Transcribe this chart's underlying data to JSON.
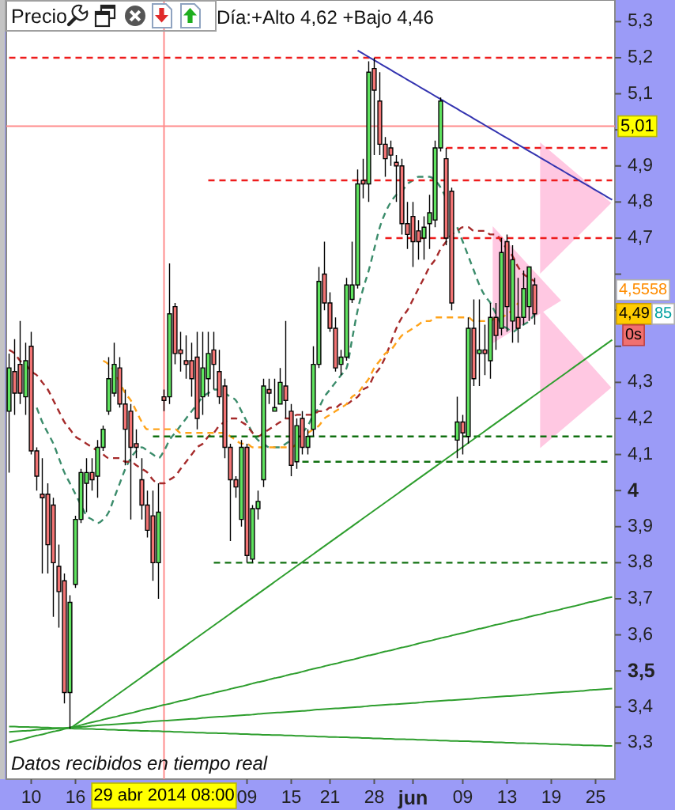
{
  "chart_data": {
    "type": "candlestick",
    "title": "Precio",
    "subtitle": "Día:+Alto 4,62 +Bajo 4,46",
    "categories": [
      null,
      null,
      null,
      null,
      "10",
      null,
      null,
      null,
      null,
      null,
      null,
      null,
      "16",
      null,
      null,
      null,
      null,
      null,
      null,
      null,
      null,
      null,
      null,
      null,
      null,
      null,
      null,
      null,
      "29 abr 2014 08:00",
      null,
      null,
      null,
      null,
      null,
      null,
      null,
      null,
      null,
      null,
      null,
      null,
      null,
      null,
      "09",
      null,
      null,
      null,
      null,
      null,
      null,
      null,
      "15",
      null,
      null,
      null,
      null,
      null,
      null,
      "21",
      null,
      null,
      null,
      null,
      null,
      null,
      null,
      "28",
      null,
      null,
      null,
      null,
      null,
      null,
      "jun",
      null,
      null,
      null,
      null,
      null,
      null,
      null,
      null,
      "09",
      null,
      null,
      null,
      null,
      null,
      null,
      null,
      "13",
      null,
      null,
      null,
      null,
      null,
      null,
      null,
      "19",
      null,
      null,
      null,
      null,
      null,
      null,
      null,
      "25",
      null,
      null,
      null
    ],
    "ohlc": [
      [
        4.22,
        4.38,
        4.05,
        4.34
      ],
      [
        4.33,
        4.42,
        4.21,
        4.27
      ],
      [
        4.35,
        4.47,
        4.24,
        4.27
      ],
      [
        4.26,
        4.41,
        4.21,
        4.36
      ],
      [
        4.4,
        4.44,
        4.1,
        4.11
      ],
      [
        4.11,
        4.12,
        4.0,
        4.04
      ],
      [
        3.99,
        4.09,
        3.77,
        3.98
      ],
      [
        3.99,
        4.02,
        3.77,
        3.85
      ],
      [
        3.96,
        3.98,
        3.65,
        3.8
      ],
      [
        3.79,
        3.85,
        3.62,
        3.72
      ],
      [
        3.75,
        3.77,
        3.41,
        3.44
      ],
      [
        3.44,
        3.71,
        3.34,
        3.69
      ],
      [
        3.74,
        3.93,
        3.73,
        3.92
      ],
      [
        3.92,
        4.06,
        3.91,
        4.05
      ],
      [
        4.02,
        4.09,
        3.94,
        4.05
      ],
      [
        4.05,
        4.09,
        4.0,
        4.03
      ],
      [
        4.04,
        4.14,
        3.98,
        4.12
      ],
      [
        4.12,
        4.18,
        4.11,
        4.17
      ],
      [
        4.22,
        4.37,
        4.21,
        4.31
      ],
      [
        4.27,
        4.41,
        4.26,
        4.35
      ],
      [
        4.34,
        4.37,
        4.23,
        4.24
      ],
      [
        4.24,
        4.28,
        4.07,
        4.17
      ],
      [
        4.22,
        4.24,
        3.92,
        4.12
      ],
      [
        4.13,
        4.17,
        4.09,
        4.12
      ],
      [
        4.03,
        4.09,
        3.92,
        3.96
      ],
      [
        3.96,
        4.0,
        3.87,
        3.89
      ],
      [
        3.93,
        4.0,
        3.75,
        3.8
      ],
      [
        3.8,
        4.02,
        3.7,
        3.94
      ],
      [
        4.26,
        4.28,
        4.22,
        4.25
      ],
      [
        4.26,
        4.63,
        4.24,
        4.49
      ],
      [
        4.51,
        4.52,
        4.35,
        4.38
      ],
      [
        4.39,
        4.44,
        4.33,
        4.38
      ],
      [
        4.36,
        4.43,
        4.31,
        4.35
      ],
      [
        4.36,
        4.41,
        4.26,
        4.31
      ],
      [
        4.37,
        4.44,
        4.17,
        4.2
      ],
      [
        4.26,
        4.44,
        4.21,
        4.34
      ],
      [
        4.31,
        4.44,
        4.26,
        4.38
      ],
      [
        4.39,
        4.44,
        4.28,
        4.35
      ],
      [
        4.33,
        4.39,
        4.24,
        4.26
      ],
      [
        4.29,
        4.31,
        4.09,
        4.12
      ],
      [
        4.12,
        4.13,
        3.86,
        4.03
      ],
      [
        4.03,
        4.04,
        3.98,
        4.01
      ],
      [
        3.92,
        4.14,
        3.9,
        4.12
      ],
      [
        4.12,
        4.13,
        3.8,
        3.82
      ],
      [
        3.81,
        3.96,
        3.8,
        3.95
      ],
      [
        3.95,
        4.0,
        3.92,
        3.97
      ],
      [
        4.03,
        4.31,
        4.01,
        4.29
      ],
      [
        4.28,
        4.31,
        4.24,
        4.27
      ],
      [
        4.22,
        4.31,
        4.22,
        4.23
      ],
      [
        4.24,
        4.34,
        4.24,
        4.3
      ],
      [
        4.29,
        4.47,
        4.2,
        4.25
      ],
      [
        4.22,
        4.24,
        4.04,
        4.07
      ],
      [
        4.08,
        4.2,
        4.06,
        4.18
      ],
      [
        4.2,
        4.22,
        4.1,
        4.12
      ],
      [
        4.12,
        4.17,
        4.1,
        4.15
      ],
      [
        4.17,
        4.4,
        4.15,
        4.35
      ],
      [
        4.35,
        4.62,
        4.34,
        4.58
      ],
      [
        4.6,
        4.69,
        4.5,
        4.52
      ],
      [
        4.52,
        4.55,
        4.44,
        4.45
      ],
      [
        4.45,
        4.48,
        4.33,
        4.34
      ],
      [
        4.35,
        4.39,
        4.32,
        4.37
      ],
      [
        4.37,
        4.59,
        4.36,
        4.57
      ],
      [
        4.53,
        4.69,
        4.52,
        4.57
      ],
      [
        4.57,
        4.89,
        4.56,
        4.85
      ],
      [
        4.86,
        4.92,
        4.81,
        4.85
      ],
      [
        4.85,
        5.19,
        4.8,
        5.16
      ],
      [
        5.17,
        5.2,
        4.93,
        5.11
      ],
      [
        5.08,
        5.16,
        4.93,
        4.96
      ],
      [
        4.96,
        4.98,
        4.87,
        4.92
      ],
      [
        4.95,
        4.97,
        4.9,
        4.93
      ],
      [
        4.91,
        4.93,
        4.8,
        4.9
      ],
      [
        4.9,
        4.92,
        4.71,
        4.74
      ],
      [
        4.74,
        4.8,
        4.67,
        4.71
      ],
      [
        4.76,
        4.8,
        4.62,
        4.69
      ],
      [
        4.72,
        4.75,
        4.64,
        4.69
      ],
      [
        4.7,
        4.76,
        4.64,
        4.73
      ],
      [
        4.74,
        4.82,
        4.67,
        4.77
      ],
      [
        4.75,
        4.97,
        4.73,
        4.95
      ],
      [
        4.95,
        5.09,
        4.94,
        5.08
      ],
      [
        4.92,
        4.95,
        4.68,
        4.7
      ],
      [
        4.83,
        4.84,
        4.5,
        4.52
      ],
      [
        4.14,
        4.26,
        4.09,
        4.19
      ],
      [
        4.19,
        4.21,
        4.1,
        4.16
      ],
      [
        4.15,
        4.48,
        4.13,
        4.45
      ],
      [
        4.45,
        4.53,
        4.29,
        4.31
      ],
      [
        4.38,
        4.53,
        4.29,
        4.39
      ],
      [
        4.39,
        4.46,
        4.32,
        4.38
      ],
      [
        4.36,
        4.52,
        4.31,
        4.48
      ],
      [
        4.48,
        4.52,
        4.39,
        4.43
      ],
      [
        4.45,
        4.7,
        4.43,
        4.66
      ],
      [
        4.69,
        4.71,
        4.44,
        4.51
      ],
      [
        4.47,
        4.68,
        4.41,
        4.64
      ],
      [
        4.48,
        4.59,
        4.41,
        4.45
      ],
      [
        4.48,
        4.61,
        4.46,
        4.56
      ],
      [
        4.51,
        4.62,
        4.47,
        4.62
      ],
      [
        4.57,
        4.59,
        4.46,
        4.49
      ],
      null,
      null,
      null,
      null,
      null,
      null,
      null,
      null,
      null,
      null,
      null,
      null,
      null,
      null
    ],
    "ylim": [
      3.2,
      5.36
    ],
    "yticks": [
      {
        "value": 5.3,
        "label": "5,3"
      },
      {
        "value": 5.2,
        "label": "5,2"
      },
      {
        "value": 5.1,
        "label": "5,1"
      },
      {
        "value": 5,
        "label": null
      },
      {
        "value": 4.9,
        "label": "4,9"
      },
      {
        "value": 4.8,
        "label": "4,8"
      },
      {
        "value": 4.7,
        "label": "4,7"
      },
      {
        "value": 4.6,
        "label": null
      },
      {
        "value": 4.5,
        "label": null
      },
      {
        "value": 4.4,
        "label": null
      },
      {
        "value": 4.3,
        "label": "4,3"
      },
      {
        "value": 4.2,
        "label": "4,2"
      },
      {
        "value": 4.1,
        "label": "4,1"
      },
      4,
      {
        "value": 3.9,
        "label": "3,9"
      },
      {
        "value": 3.8,
        "label": "3,8"
      },
      {
        "value": 3.7,
        "label": "3,7"
      },
      {
        "value": 3.6,
        "label": "3,6"
      },
      {
        "value": 3.5,
        "label": "3,5"
      },
      {
        "value": 3.4,
        "label": "3,4"
      },
      {
        "value": 3.3,
        "label": "3,3"
      }
    ],
    "series": [
      {
        "type": "line",
        "color": "#3b8c6b",
        "line_style": "dashed",
        "values": [
          null,
          null,
          null,
          null,
          null,
          4.23,
          4.19,
          4.16,
          4.13,
          4.09,
          4.05,
          4.02,
          3.99,
          3.96,
          3.93,
          3.92,
          3.91,
          3.92,
          3.94,
          3.98,
          4.02,
          4.06,
          4.09,
          4.11,
          4.12,
          4.11,
          4.1,
          4.09,
          4.11,
          4.14,
          4.16,
          4.18,
          4.2,
          4.22,
          4.24,
          4.26,
          4.27,
          4.28,
          4.28,
          4.27,
          4.26,
          4.25,
          4.22,
          4.19,
          4.16,
          4.14,
          4.13,
          4.12,
          4.12,
          4.12,
          4.13,
          4.14,
          null,
          4.16,
          4.18,
          4.21,
          4.23,
          4.26,
          4.28,
          4.3,
          4.32,
          4.34,
          4.42,
          4.5,
          4.56,
          4.61,
          4.67,
          4.73,
          4.77,
          4.8,
          4.82,
          4.83,
          4.85,
          4.86,
          4.87,
          4.87,
          4.87,
          4.86,
          4.84,
          4.81,
          null,
          4.73,
          4.69,
          4.65,
          4.61,
          4.57,
          4.54,
          4.52,
          4.49,
          4.46,
          4.45,
          4.44,
          4.45,
          4.46,
          4.47,
          4.49,
          null,
          null,
          null,
          null,
          null,
          null,
          null,
          null,
          null,
          null,
          null,
          null,
          null,
          null
        ]
      },
      {
        "type": "line",
        "color": "#a52a2a",
        "line_style": "dashed",
        "values": [
          4.39,
          4.38,
          4.36,
          4.35,
          4.33,
          4.32,
          4.3,
          4.28,
          4.25,
          4.22,
          4.19,
          4.17,
          4.15,
          4.14,
          4.13,
          4.12,
          4.11,
          4.1,
          4.09,
          4.09,
          4.09,
          4.08,
          4.08,
          4.07,
          4.06,
          4.05,
          4.03,
          4.02,
          4.02,
          4.03,
          4.04,
          4.06,
          4.08,
          4.1,
          4.12,
          4.13,
          4.15,
          4.16,
          4.18,
          4.19,
          4.2,
          4.2,
          4.19,
          4.18,
          4.16,
          4.15,
          4.16,
          4.17,
          4.18,
          4.19,
          4.2,
          4.2,
          4.21,
          4.21,
          4.21,
          4.21,
          4.22,
          4.22,
          4.23,
          4.23,
          4.24,
          4.24,
          4.25,
          4.26,
          4.28,
          4.29,
          4.32,
          4.34,
          4.37,
          4.41,
          4.45,
          4.48,
          4.5,
          4.53,
          4.56,
          4.59,
          4.62,
          4.64,
          4.67,
          4.69,
          4.71,
          4.72,
          4.73,
          4.73,
          4.72,
          4.72,
          4.72,
          4.71,
          4.71,
          4.69,
          4.67,
          4.65,
          4.62,
          4.6,
          4.59,
          4.58,
          null,
          null,
          null,
          null,
          null,
          null,
          null,
          null,
          null,
          null,
          null,
          null,
          null,
          null
        ]
      },
      {
        "type": "line",
        "color": "#ffa31a",
        "line_style": "dashed",
        "values": [
          null,
          null,
          null,
          null,
          null,
          null,
          null,
          null,
          null,
          null,
          null,
          null,
          null,
          null,
          null,
          null,
          null,
          4.36,
          4.35,
          4.33,
          4.3,
          4.27,
          4.25,
          4.22,
          4.19,
          4.17,
          4.17,
          4.17,
          4.17,
          4.17,
          4.17,
          4.16,
          4.16,
          4.16,
          4.16,
          4.16,
          4.16,
          4.16,
          4.16,
          4.16,
          4.15,
          4.14,
          4.13,
          4.13,
          4.12,
          4.12,
          4.12,
          4.12,
          4.12,
          4.12,
          4.12,
          4.12,
          4.13,
          null,
          4.16,
          4.17,
          4.18,
          4.2,
          4.21,
          4.22,
          4.23,
          4.24,
          4.26,
          4.27,
          4.29,
          4.31,
          4.34,
          4.36,
          4.38,
          4.39,
          4.41,
          4.43,
          4.44,
          4.45,
          4.46,
          4.47,
          4.47,
          4.48,
          4.48,
          4.48,
          4.48,
          4.48,
          4.48,
          4.48,
          4.47,
          4.47,
          4.47,
          4.47,
          4.48,
          4.48,
          4.49,
          4.5,
          4.52,
          null,
          null,
          null,
          null,
          null,
          null,
          null,
          null,
          null,
          null,
          null,
          null,
          null,
          null,
          null,
          null,
          null
        ]
      },
      {
        "type": "line",
        "color": "#ee1c1c",
        "line_style": "dashed",
        "values": [
          5.2,
          5.2,
          5.2,
          5.2,
          5.2,
          5.2,
          5.2,
          5.2,
          5.2,
          5.2,
          5.2,
          5.2,
          5.2,
          5.2,
          5.2,
          5.2,
          5.2,
          5.2,
          5.2,
          5.2,
          5.2,
          5.2,
          5.2,
          5.2,
          5.2,
          5.2,
          5.2,
          5.2,
          5.2,
          5.2,
          5.2,
          5.2,
          5.2,
          5.2,
          5.2,
          5.2,
          5.2,
          5.2,
          5.2,
          5.2,
          5.2,
          5.2,
          5.2,
          5.2,
          5.2,
          5.2,
          5.2,
          5.2,
          5.2,
          5.2,
          5.2,
          5.2,
          5.2,
          5.2,
          5.2,
          5.2,
          5.2,
          5.2,
          5.2,
          5.2,
          5.2,
          5.2,
          5.2,
          5.2,
          5.2,
          5.2,
          5.2,
          5.2,
          5.2,
          5.2,
          5.2,
          5.2,
          5.2,
          5.2,
          5.2,
          5.2,
          5.2,
          5.2,
          5.2,
          5.2,
          5.2,
          5.2,
          5.2,
          5.2,
          5.2,
          5.2,
          5.2,
          5.2,
          5.2,
          5.2,
          5.2,
          5.2,
          5.2,
          5.2,
          5.2,
          5.2,
          5.2,
          5.2,
          5.2,
          5.2,
          5.2,
          5.2,
          5.2,
          5.2,
          5.2,
          5.2,
          5.2,
          5.2,
          5.2,
          5.2
        ]
      },
      {
        "type": "line",
        "color": "#ee1c1c",
        "line_style": "dashed",
        "values": [
          null,
          null,
          null,
          null,
          null,
          null,
          null,
          null,
          null,
          null,
          null,
          null,
          null,
          null,
          null,
          null,
          null,
          null,
          null,
          null,
          null,
          null,
          null,
          null,
          null,
          null,
          null,
          null,
          null,
          null,
          null,
          null,
          null,
          null,
          null,
          null,
          null,
          null,
          null,
          null,
          null,
          null,
          null,
          null,
          null,
          null,
          null,
          null,
          null,
          null,
          null,
          null,
          null,
          null,
          null,
          null,
          null,
          null,
          null,
          null,
          null,
          null,
          null,
          null,
          null,
          null,
          null,
          null,
          null,
          null,
          null,
          null,
          null,
          null,
          null,
          null,
          null,
          null,
          null,
          4.95,
          4.95,
          4.95,
          4.95,
          4.95,
          4.95,
          4.95,
          4.95,
          4.95,
          4.95,
          4.95,
          4.95,
          4.95,
          4.95,
          4.95,
          4.95,
          4.95,
          4.95,
          4.95,
          4.95,
          4.95,
          4.95,
          4.95,
          4.95,
          4.95,
          4.95,
          4.95,
          4.95,
          4.95,
          4.95,
          4.95
        ]
      },
      {
        "type": "line",
        "color": "#ee1c1c",
        "line_style": "dashed",
        "values": [
          null,
          null,
          null,
          null,
          null,
          null,
          null,
          null,
          null,
          null,
          null,
          null,
          null,
          null,
          null,
          null,
          null,
          null,
          null,
          null,
          null,
          null,
          null,
          null,
          null,
          null,
          null,
          null,
          null,
          null,
          null,
          null,
          null,
          null,
          null,
          null,
          4.86,
          4.86,
          4.86,
          4.86,
          4.86,
          4.86,
          4.86,
          4.86,
          4.86,
          4.86,
          4.86,
          4.86,
          4.86,
          4.86,
          4.86,
          4.86,
          4.86,
          4.86,
          4.86,
          4.86,
          4.86,
          4.86,
          4.86,
          4.86,
          4.86,
          4.86,
          4.86,
          4.86,
          4.86,
          4.86,
          4.86,
          4.86,
          4.86,
          4.86,
          4.86,
          4.86,
          4.86,
          4.86,
          4.86,
          4.86,
          4.86,
          4.86,
          4.86,
          4.86,
          4.86,
          4.86,
          4.86,
          4.86,
          4.86,
          4.86,
          4.86,
          4.86,
          4.86,
          4.86,
          4.86,
          4.86,
          4.86,
          4.86,
          4.86,
          4.86,
          4.86,
          4.86,
          4.86,
          4.86,
          4.86,
          4.86,
          4.86,
          4.86,
          4.86,
          4.86,
          4.86,
          4.86,
          4.86,
          4.86
        ]
      },
      {
        "type": "line",
        "color": "#ee1c1c",
        "line_style": "dashed",
        "values": [
          null,
          null,
          null,
          null,
          null,
          null,
          null,
          null,
          null,
          null,
          null,
          null,
          null,
          null,
          null,
          null,
          null,
          null,
          null,
          null,
          null,
          null,
          null,
          null,
          null,
          null,
          null,
          null,
          null,
          null,
          null,
          null,
          null,
          null,
          null,
          null,
          null,
          null,
          null,
          null,
          null,
          null,
          null,
          null,
          null,
          null,
          null,
          null,
          null,
          null,
          null,
          null,
          null,
          null,
          null,
          null,
          null,
          null,
          null,
          null,
          null,
          null,
          null,
          null,
          null,
          null,
          null,
          null,
          4.7,
          4.7,
          4.7,
          4.7,
          4.7,
          4.7,
          4.7,
          4.7,
          4.7,
          4.7,
          4.7,
          4.7,
          4.7,
          4.7,
          4.7,
          4.7,
          4.7,
          4.7,
          4.7,
          4.7,
          4.7,
          4.7,
          4.7,
          4.7,
          4.7,
          4.7,
          4.7,
          4.7,
          4.7,
          4.7,
          4.7,
          4.7,
          4.7,
          4.7,
          4.7,
          4.7,
          4.7,
          4.7,
          4.7,
          4.7,
          4.7,
          4.7
        ]
      },
      {
        "type": "line",
        "color": "#107010",
        "line_style": "dashed",
        "values": [
          null,
          null,
          null,
          null,
          null,
          null,
          null,
          null,
          null,
          null,
          null,
          null,
          null,
          null,
          null,
          null,
          null,
          null,
          null,
          null,
          null,
          null,
          null,
          null,
          null,
          null,
          4.15,
          4.15,
          4.15,
          4.15,
          4.15,
          4.15,
          4.15,
          4.15,
          4.15,
          4.15,
          4.15,
          4.15,
          4.15,
          4.15,
          4.15,
          4.15,
          4.15,
          4.15,
          4.15,
          4.15,
          4.15,
          4.15,
          4.15,
          4.15,
          4.15,
          4.15,
          4.15,
          4.15,
          4.15,
          4.15,
          4.15,
          4.15,
          4.15,
          4.15,
          4.15,
          4.15,
          4.15,
          4.15,
          4.15,
          4.15,
          4.15,
          4.15,
          4.15,
          4.15,
          4.15,
          4.15,
          4.15,
          4.15,
          4.15,
          4.15,
          4.15,
          4.15,
          4.15,
          4.15,
          4.15,
          4.15,
          4.15,
          4.15,
          4.15,
          4.15,
          4.15,
          4.15,
          4.15,
          4.15,
          4.15,
          4.15,
          4.15,
          4.15,
          4.15,
          4.15,
          4.15,
          4.15,
          4.15,
          4.15,
          4.15,
          4.15,
          4.15,
          4.15,
          4.15,
          4.15,
          4.15,
          4.15,
          4.15,
          4.15
        ]
      },
      {
        "type": "line",
        "color": "#107010",
        "line_style": "dashed",
        "values": [
          null,
          null,
          null,
          null,
          null,
          null,
          null,
          null,
          null,
          null,
          null,
          null,
          null,
          null,
          null,
          null,
          null,
          null,
          null,
          null,
          null,
          null,
          null,
          null,
          null,
          null,
          null,
          null,
          null,
          null,
          null,
          null,
          null,
          null,
          null,
          null,
          null,
          null,
          null,
          null,
          null,
          null,
          null,
          null,
          null,
          null,
          null,
          null,
          null,
          null,
          null,
          null,
          null,
          4.08,
          4.08,
          4.08,
          4.08,
          4.08,
          4.08,
          4.08,
          4.08,
          4.08,
          4.08,
          4.08,
          4.08,
          4.08,
          4.08,
          4.08,
          4.08,
          4.08,
          4.08,
          4.08,
          4.08,
          4.08,
          4.08,
          4.08,
          4.08,
          4.08,
          4.08,
          4.08,
          4.08,
          4.08,
          4.08,
          4.08,
          4.08,
          4.08,
          4.08,
          4.08,
          4.08,
          4.08,
          4.08,
          4.08,
          4.08,
          4.08,
          4.08,
          4.08,
          4.08,
          4.08,
          4.08,
          4.08,
          4.08,
          4.08,
          4.08,
          4.08,
          4.08,
          4.08,
          4.08,
          4.08,
          4.08,
          4.08
        ]
      },
      {
        "type": "line",
        "color": "#107010",
        "line_style": "dashed",
        "values": [
          null,
          null,
          null,
          null,
          null,
          null,
          null,
          null,
          null,
          null,
          null,
          null,
          null,
          null,
          null,
          null,
          null,
          null,
          null,
          null,
          null,
          null,
          null,
          null,
          null,
          null,
          null,
          null,
          null,
          null,
          null,
          null,
          null,
          null,
          null,
          null,
          null,
          3.8,
          3.8,
          3.8,
          3.8,
          3.8,
          3.8,
          3.8,
          3.8,
          3.8,
          3.8,
          3.8,
          3.8,
          3.8,
          3.8,
          3.8,
          3.8,
          3.8,
          3.8,
          3.8,
          3.8,
          3.8,
          3.8,
          3.8,
          3.8,
          3.8,
          3.8,
          3.8,
          3.8,
          3.8,
          3.8,
          3.8,
          3.8,
          3.8,
          3.8,
          3.8,
          3.8,
          3.8,
          3.8,
          3.8,
          3.8,
          3.8,
          3.8,
          3.8,
          3.8,
          3.8,
          3.8,
          3.8,
          3.8,
          3.8,
          3.8,
          3.8,
          3.8,
          3.8,
          3.8,
          3.8,
          3.8,
          3.8,
          3.8,
          3.8,
          3.8,
          3.8,
          3.8,
          3.8,
          3.8,
          3.8,
          3.8,
          3.8,
          3.8,
          3.8,
          3.8,
          3.8,
          3.8,
          3.8
        ]
      },
      {
        "type": "line",
        "color": "#2e9e2e",
        "line_style": "solid",
        "values": [
          null,
          null,
          null,
          null,
          null,
          null,
          null,
          null,
          null,
          null,
          null,
          3.34,
          3.351,
          3.362,
          3.373,
          3.384,
          3.395,
          3.406,
          3.417,
          3.428,
          3.439,
          3.45,
          3.461,
          3.472,
          3.483,
          3.494,
          3.505,
          3.516,
          3.527,
          3.538,
          3.549,
          3.56,
          3.571,
          3.582,
          3.593,
          3.604,
          3.615,
          3.626,
          3.637,
          3.648,
          3.659,
          3.67,
          3.681,
          3.692,
          3.703,
          3.714,
          3.725,
          3.736,
          3.747,
          3.758,
          3.769,
          3.78,
          3.791,
          3.802,
          3.813,
          3.824,
          3.835,
          3.846,
          3.857,
          3.868,
          3.879,
          3.89,
          3.901,
          3.912,
          3.923,
          3.934,
          3.945,
          3.956,
          3.967,
          3.978,
          3.989,
          4.0,
          4.011,
          4.022,
          4.033,
          4.044,
          4.055,
          4.066,
          4.077,
          4.088,
          4.099,
          4.11,
          4.121,
          4.132,
          4.143,
          4.154,
          4.165,
          4.176,
          4.187,
          4.198,
          4.209,
          4.22,
          4.231,
          4.242,
          4.253,
          4.264,
          4.275,
          4.286,
          4.297,
          4.308,
          4.319,
          4.33,
          4.341,
          4.352,
          4.363,
          4.374,
          4.385,
          4.396,
          4.407,
          4.418
        ]
      },
      {
        "type": "line",
        "color": "#2e9e2e",
        "line_style": "solid",
        "values": [
          3.302,
          3.306,
          3.309,
          3.313,
          3.317,
          3.321,
          3.324,
          3.328,
          3.332,
          3.335,
          3.339,
          3.343,
          3.346,
          3.35,
          3.354,
          3.358,
          3.361,
          3.365,
          3.369,
          3.372,
          3.376,
          3.38,
          3.383,
          3.387,
          3.391,
          3.395,
          3.398,
          3.402,
          3.406,
          3.409,
          3.413,
          3.417,
          3.42,
          3.424,
          3.428,
          3.432,
          3.435,
          3.439,
          3.443,
          3.446,
          3.45,
          3.454,
          3.457,
          3.461,
          3.465,
          3.469,
          3.472,
          3.476,
          3.48,
          3.483,
          3.487,
          3.491,
          3.494,
          3.498,
          3.502,
          3.506,
          3.509,
          3.513,
          3.517,
          3.52,
          3.524,
          3.528,
          3.531,
          3.535,
          3.539,
          3.543,
          3.546,
          3.55,
          3.554,
          3.557,
          3.561,
          3.565,
          3.568,
          3.572,
          3.576,
          3.58,
          3.583,
          3.587,
          3.591,
          3.594,
          3.598,
          3.602,
          3.605,
          3.609,
          3.613,
          3.617,
          3.62,
          3.624,
          3.628,
          3.631,
          3.635,
          3.639,
          3.642,
          3.646,
          3.65,
          3.654,
          3.657,
          3.661,
          3.665,
          3.668,
          3.672,
          3.676,
          3.679,
          3.683,
          3.687,
          3.691,
          3.694,
          3.698,
          3.702,
          3.705
        ]
      },
      {
        "type": "line",
        "color": "#2e9e2e",
        "line_style": "solid",
        "values": [
          3.331,
          3.332,
          3.333,
          3.334,
          3.335,
          3.337,
          3.338,
          3.339,
          3.34,
          3.341,
          3.342,
          3.343,
          3.344,
          3.345,
          3.346,
          3.348,
          3.349,
          3.35,
          3.351,
          3.352,
          3.353,
          3.354,
          3.355,
          3.356,
          3.357,
          3.359,
          3.36,
          3.361,
          3.362,
          3.363,
          3.364,
          3.365,
          3.366,
          3.367,
          3.368,
          3.37,
          3.371,
          3.372,
          3.373,
          3.374,
          3.375,
          3.376,
          3.377,
          3.378,
          3.379,
          3.381,
          3.382,
          3.383,
          3.384,
          3.385,
          3.386,
          3.387,
          3.388,
          3.389,
          3.39,
          3.392,
          3.393,
          3.394,
          3.395,
          3.396,
          3.397,
          3.398,
          3.399,
          3.4,
          3.401,
          3.403,
          3.404,
          3.405,
          3.406,
          3.407,
          3.408,
          3.409,
          3.41,
          3.411,
          3.412,
          3.414,
          3.415,
          3.416,
          3.417,
          3.418,
          3.419,
          3.42,
          3.421,
          3.422,
          3.423,
          3.425,
          3.426,
          3.427,
          3.428,
          3.429,
          3.43,
          3.431,
          3.432,
          3.433,
          3.434,
          3.436,
          3.437,
          3.438,
          3.439,
          3.44,
          3.441,
          3.442,
          3.443,
          3.444,
          3.445,
          3.447,
          3.448,
          3.449,
          3.45,
          3.451
        ]
      },
      {
        "type": "line",
        "color": "#2e9e2e",
        "line_style": "solid",
        "values": [
          3.346,
          3.346,
          3.345,
          3.345,
          3.344,
          3.344,
          3.343,
          3.343,
          3.342,
          3.342,
          3.341,
          3.341,
          3.34,
          3.34,
          3.339,
          3.339,
          3.338,
          3.338,
          3.337,
          3.337,
          3.336,
          3.336,
          3.335,
          3.335,
          3.334,
          3.334,
          3.333,
          3.333,
          3.332,
          3.332,
          3.331,
          3.331,
          3.33,
          3.33,
          3.329,
          3.329,
          3.328,
          3.328,
          3.327,
          3.327,
          3.326,
          3.326,
          3.325,
          3.325,
          3.324,
          3.324,
          3.323,
          3.323,
          3.322,
          3.322,
          3.321,
          3.321,
          3.32,
          3.32,
          3.319,
          3.319,
          3.318,
          3.318,
          3.317,
          3.317,
          3.316,
          3.316,
          3.315,
          3.315,
          3.314,
          3.314,
          3.313,
          3.313,
          3.312,
          3.312,
          3.311,
          3.311,
          3.31,
          3.31,
          3.309,
          3.309,
          3.308,
          3.308,
          3.307,
          3.307,
          3.306,
          3.306,
          3.305,
          3.305,
          3.304,
          3.304,
          3.303,
          3.303,
          3.302,
          3.302,
          3.301,
          3.301,
          3.3,
          3.3,
          3.299,
          3.299,
          3.298,
          3.298,
          3.297,
          3.297,
          3.296,
          3.296,
          3.295,
          3.295,
          3.294,
          3.294,
          3.293,
          3.293,
          3.292,
          3.292
        ]
      },
      {
        "type": "line",
        "color": "#3434b0",
        "line_style": "solid",
        "values": [
          null,
          null,
          null,
          null,
          null,
          null,
          null,
          null,
          null,
          null,
          null,
          null,
          null,
          null,
          null,
          null,
          null,
          null,
          null,
          null,
          null,
          null,
          null,
          null,
          null,
          null,
          null,
          null,
          null,
          null,
          null,
          null,
          null,
          null,
          null,
          null,
          null,
          null,
          null,
          null,
          null,
          null,
          null,
          null,
          null,
          null,
          null,
          null,
          null,
          null,
          null,
          null,
          null,
          null,
          null,
          null,
          null,
          null,
          null,
          null,
          null,
          null,
          null,
          5.22,
          5.211,
          5.202,
          5.193,
          5.184,
          5.175,
          5.166,
          5.157,
          5.148,
          5.139,
          5.13,
          5.121,
          5.112,
          5.103,
          5.094,
          5.085,
          5.076,
          5.067,
          5.058,
          5.049,
          5.04,
          5.031,
          5.022,
          5.013,
          5.004,
          4.995,
          4.986,
          4.977,
          4.968,
          4.959,
          4.95,
          4.941,
          4.932,
          4.923,
          4.914,
          4.905,
          4.896,
          4.887,
          4.878,
          4.869,
          4.86,
          4.851,
          4.842,
          4.833,
          4.824,
          4.815,
          4.806
        ]
      }
    ],
    "ref_lines": [
      {
        "axis": "y",
        "value": 5.01,
        "label": "5,01",
        "color": "#ff8c8c"
      },
      {
        "axis": "x",
        "value": "29 abr 2014 08:00",
        "color": "#ff8c8c"
      }
    ],
    "annotations": [
      "Datos recibidos en tiempo real",
      {
        "text": "4,5558",
        "y": 4.5558
      },
      {
        "text": "4,49",
        "y": 4.49
      },
      "85",
      "0s"
    ]
  }
}
